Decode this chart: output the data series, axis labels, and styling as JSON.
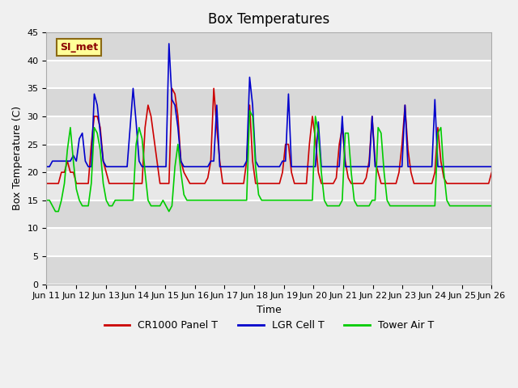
{
  "title": "Box Temperatures",
  "xlabel": "Time",
  "ylabel": "Box Temperature (C)",
  "ylim": [
    0,
    45
  ],
  "yticks": [
    0,
    5,
    10,
    15,
    20,
    25,
    30,
    35,
    40,
    45
  ],
  "x_labels": [
    "Jun 11",
    "Jun 12",
    "Jun 13",
    "Jun 14",
    "Jun 15",
    "Jun 16",
    "Jun 17",
    "Jun 18",
    "Jun 19",
    "Jun 20",
    "Jun 21",
    "Jun 22",
    "Jun 23",
    "Jun 24",
    "Jun 25",
    "Jun 26"
  ],
  "annotation": "SI_met",
  "legend": [
    "CR1000 Panel T",
    "LGR Cell T",
    "Tower Air T"
  ],
  "colors": {
    "cr1000": "#cc0000",
    "lgr": "#0000cc",
    "tower": "#00cc00"
  },
  "bg_color": "#e8e8e8",
  "plot_bg": "#f5f5f5",
  "cr1000": [
    18,
    18,
    18,
    18,
    18,
    20,
    20,
    22,
    20,
    20,
    18,
    18,
    18,
    18,
    18,
    25,
    30,
    30,
    28,
    22,
    20,
    18,
    18,
    18,
    18,
    18,
    18,
    18,
    18,
    18,
    18,
    18,
    18,
    28,
    32,
    30,
    26,
    22,
    18,
    18,
    18,
    18,
    35,
    34,
    30,
    22,
    20,
    19,
    18,
    18,
    18,
    18,
    18,
    18,
    19,
    22,
    35,
    28,
    22,
    18,
    18,
    18,
    18,
    18,
    18,
    18,
    18,
    22,
    32,
    22,
    18,
    18,
    18,
    18,
    18,
    18,
    18,
    18,
    18,
    20,
    25,
    25,
    20,
    18,
    18,
    18,
    18,
    18,
    25,
    30,
    26,
    20,
    18,
    18,
    18,
    18,
    18,
    19,
    25,
    28,
    22,
    19,
    18,
    18,
    18,
    18,
    18,
    19,
    22,
    30,
    22,
    20,
    18,
    18,
    18,
    18,
    18,
    18,
    20,
    25,
    32,
    24,
    20,
    18,
    18,
    18,
    18,
    18,
    18,
    18,
    20,
    28,
    22,
    19,
    18,
    18,
    18,
    18,
    18,
    18,
    18,
    18,
    18,
    18,
    18,
    18,
    18,
    18,
    18,
    20
  ],
  "lgr": [
    21,
    21,
    22,
    22,
    22,
    22,
    22,
    22,
    22,
    23,
    22,
    26,
    27,
    22,
    21,
    21,
    34,
    32,
    27,
    22,
    21,
    21,
    21,
    21,
    21,
    21,
    21,
    21,
    28,
    35,
    29,
    22,
    21,
    21,
    21,
    21,
    21,
    21,
    21,
    21,
    21,
    43,
    33,
    32,
    28,
    22,
    21,
    21,
    21,
    21,
    21,
    21,
    21,
    21,
    21,
    22,
    22,
    32,
    21,
    21,
    21,
    21,
    21,
    21,
    21,
    21,
    21,
    22,
    37,
    32,
    22,
    21,
    21,
    21,
    21,
    21,
    21,
    21,
    21,
    22,
    22,
    34,
    21,
    21,
    21,
    21,
    21,
    21,
    21,
    21,
    21,
    29,
    21,
    21,
    21,
    21,
    21,
    21,
    21,
    30,
    21,
    21,
    21,
    21,
    21,
    21,
    21,
    21,
    21,
    30,
    21,
    21,
    21,
    21,
    21,
    21,
    21,
    21,
    21,
    21,
    32,
    21,
    21,
    21,
    21,
    21,
    21,
    21,
    21,
    21,
    33,
    21,
    21,
    21,
    21,
    21,
    21,
    21,
    21,
    21,
    21,
    21,
    21,
    21,
    21,
    21,
    21,
    21,
    21,
    21
  ],
  "tower": [
    15,
    15,
    14,
    13,
    13,
    15,
    18,
    24,
    28,
    22,
    17,
    15,
    14,
    14,
    14,
    18,
    28,
    27,
    24,
    18,
    15,
    14,
    14,
    15,
    15,
    15,
    15,
    15,
    15,
    15,
    25,
    28,
    26,
    20,
    15,
    14,
    14,
    14,
    14,
    15,
    14,
    13,
    14,
    21,
    25,
    20,
    16,
    15,
    15,
    15,
    15,
    15,
    15,
    15,
    15,
    15,
    15,
    15,
    15,
    15,
    15,
    15,
    15,
    15,
    15,
    15,
    15,
    15,
    31,
    30,
    21,
    16,
    15,
    15,
    15,
    15,
    15,
    15,
    15,
    15,
    15,
    15,
    15,
    15,
    15,
    15,
    15,
    15,
    15,
    15,
    30,
    27,
    20,
    15,
    14,
    14,
    14,
    14,
    14,
    15,
    27,
    27,
    20,
    15,
    14,
    14,
    14,
    14,
    14,
    15,
    15,
    28,
    27,
    20,
    15,
    14,
    14,
    14,
    14,
    14,
    14,
    14,
    14,
    14,
    14,
    14,
    14,
    14,
    14,
    14,
    14,
    27,
    28,
    20,
    15,
    14,
    14,
    14,
    14,
    14,
    14,
    14,
    14,
    14,
    14,
    14,
    14,
    14,
    14,
    14
  ]
}
